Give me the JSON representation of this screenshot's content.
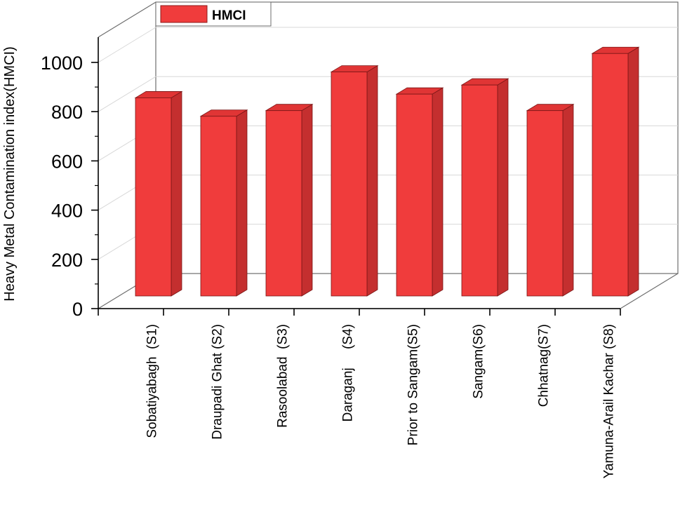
{
  "chart_data": {
    "type": "bar",
    "title": "",
    "xlabel": "",
    "ylabel": "Heavy Metal Contamination index(HMCI)",
    "ylim": [
      0,
      1000
    ],
    "yticks": [
      0,
      200,
      400,
      600,
      800,
      1000
    ],
    "grid": true,
    "legend_position": "top-left",
    "categories": [
      "Sobatiyabagh  (S1)",
      "Draupadi Ghat (S2)",
      "Rasoolabad  (S3)",
      "Daraganj     (S4)",
      "Prior to Sangam(S5)",
      "Sangam(S6)",
      "Chhatnag(S7)",
      "Yamuna-Arail Kachar (S8)"
    ],
    "series": [
      {
        "name": "HMCI",
        "color": "#f03c3c",
        "values": [
          805,
          730,
          753,
          910,
          820,
          857,
          753,
          985
        ]
      }
    ]
  }
}
